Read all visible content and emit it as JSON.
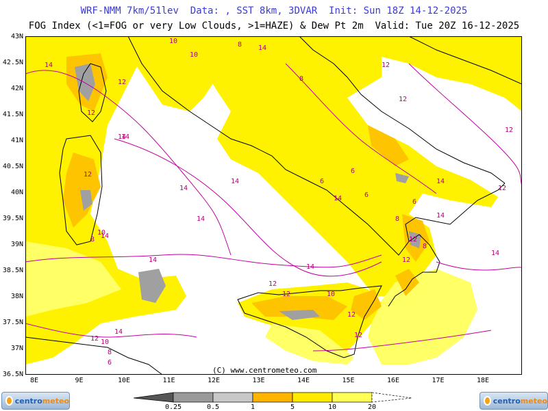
{
  "header": {
    "line1": "WRF-NMM 7km/51lev  Data: , SST 8km, 3DVAR  Init: Sun 18Z 14-12-2025",
    "line2": "FOG Index (<1=FOG or very Low Clouds, >1=HAZE) & Dew Pt 2m  Valid: Tue 20Z 16-12-2025"
  },
  "axes": {
    "lat_labels": [
      "43N",
      "42.5N",
      "42N",
      "41.5N",
      "41N",
      "40.5N",
      "40N",
      "39.5N",
      "39N",
      "38.5N",
      "38N",
      "37.5N",
      "37N",
      "36.5N"
    ],
    "lon_labels": [
      "8E",
      "9E",
      "10E",
      "11E",
      "12E",
      "13E",
      "14E",
      "15E",
      "16E",
      "17E",
      "18E"
    ]
  },
  "map": {
    "credit": "(C) www.centrometeo.com",
    "contour_labels": [
      "14",
      "14",
      "12",
      "12",
      "14",
      "10",
      "8",
      "8",
      "10",
      "12",
      "12",
      "12",
      "12",
      "14",
      "14",
      "14",
      "14",
      "14",
      "14",
      "12",
      "12",
      "12",
      "6",
      "6",
      "6",
      "8",
      "6",
      "8",
      "10",
      "12",
      "12",
      "12",
      "14",
      "14",
      "14",
      "14",
      "12",
      "12",
      "10",
      "8",
      "6",
      "10",
      "8",
      "14",
      "14"
    ],
    "colors": {
      "fill_yellow": "#fff200",
      "fill_light": "#ffff66",
      "fill_orange": "#ffc400",
      "fog_grey": "#a0a0a0",
      "contour": "#c000a0",
      "coast": "#000000"
    }
  },
  "legend": {
    "tick_labels": [
      "0.25",
      "0.5",
      "1",
      "5",
      "10",
      "20"
    ],
    "colors": [
      "#555555",
      "#9a9a9a",
      "#c8c8c8",
      "#ffb400",
      "#ffea00",
      "#ffff55",
      "#ffffff"
    ]
  },
  "logos": {
    "left": {
      "part1": "centro",
      "part2": "meteo"
    },
    "right": {
      "part1": "centro",
      "part2": "meteo"
    }
  }
}
